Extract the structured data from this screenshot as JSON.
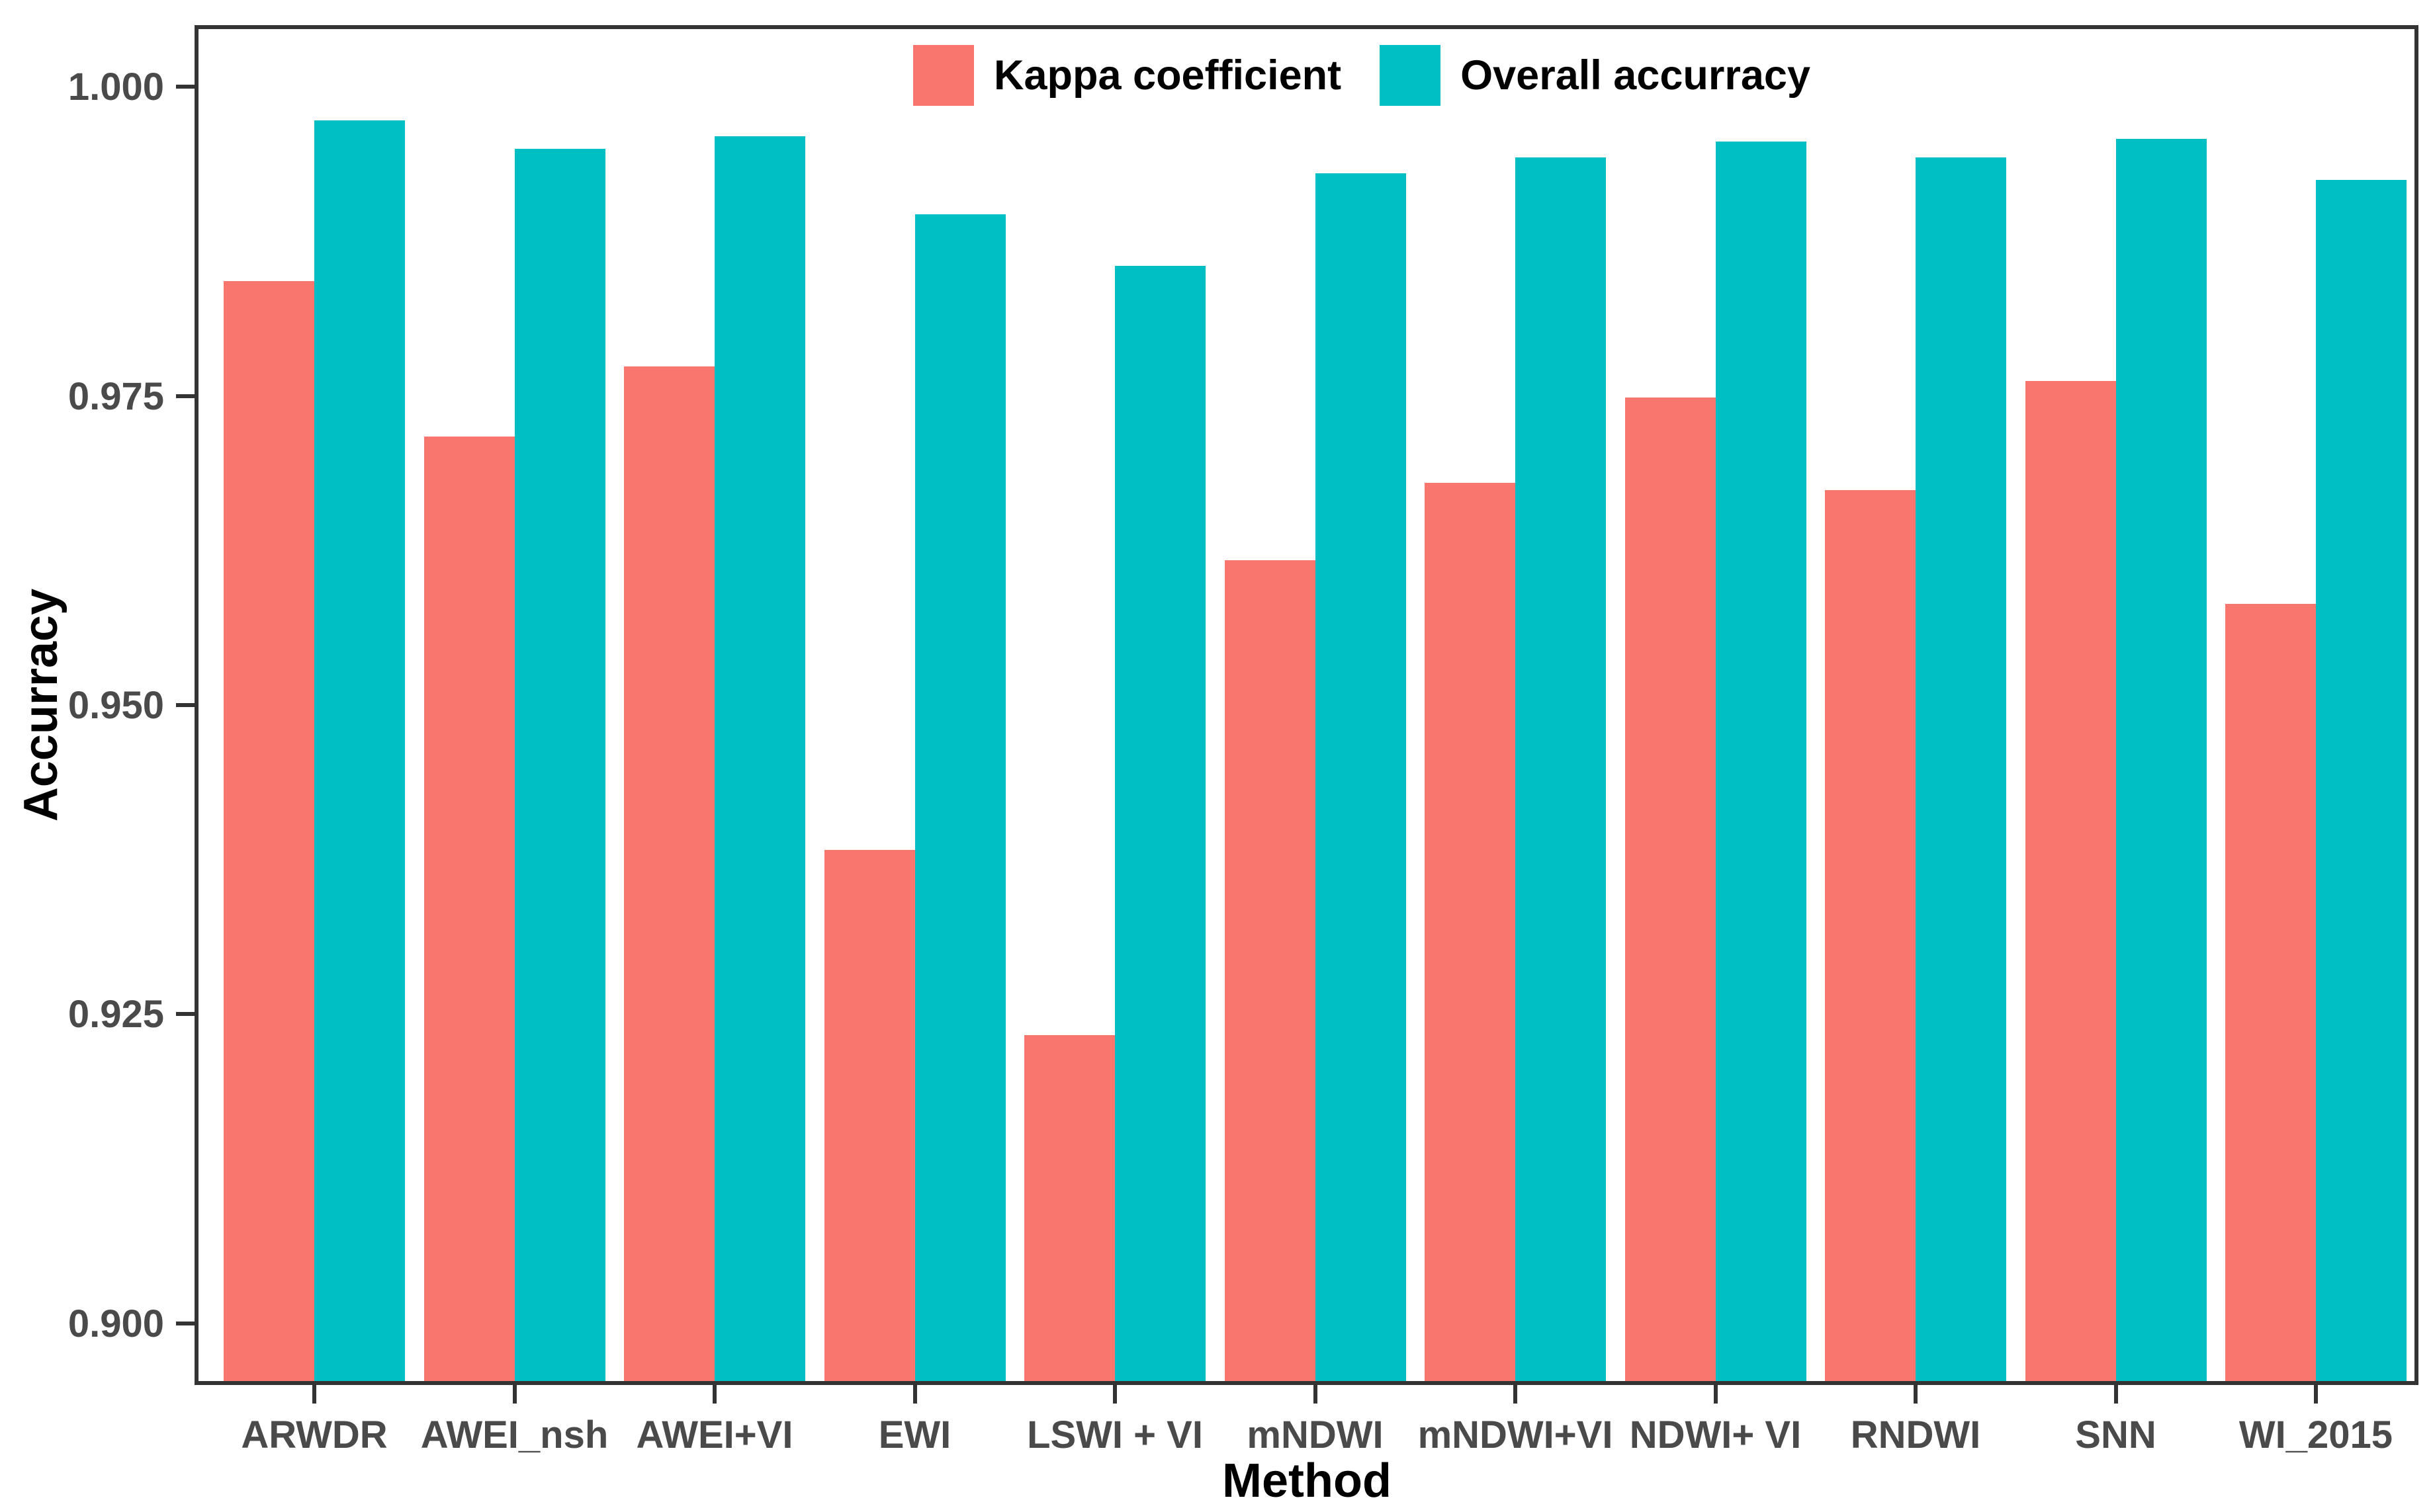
{
  "chart_data": {
    "type": "bar",
    "title": "",
    "categories": [
      "ARWDR",
      "AWEI_nsh",
      "AWEI+VI",
      "EWI",
      "LSWI + VI",
      "mNDWI",
      "mNDWI+VI",
      "NDWI+ VI",
      "RNDWI",
      "SNN",
      "WI_2015"
    ],
    "series": [
      {
        "name": "Kappa coefficient",
        "color": "#F8766D",
        "values": [
          0.9843,
          0.9717,
          0.9774,
          0.9383,
          0.9233,
          0.9617,
          0.968,
          0.9749,
          0.9674,
          0.9762,
          0.9582
        ]
      },
      {
        "name": "Overall accurracy",
        "color": "#00BFC4",
        "values": [
          0.9973,
          0.995,
          0.996,
          0.9897,
          0.9855,
          0.993,
          0.9943,
          0.9956,
          0.9943,
          0.9958,
          0.9925
        ]
      }
    ],
    "xlabel": "Method",
    "ylabel": "Accurracy",
    "ylim": [
      0.895,
      1.005
    ],
    "yticks": [
      1.0,
      0.975,
      0.95,
      0.925,
      0.9
    ],
    "ytick_labels": [
      "1.000",
      "0.975",
      "0.950",
      "0.925",
      "0.900"
    ],
    "grid": false,
    "legend_position": "top",
    "bar_orientation": "vertical"
  },
  "legend": {
    "items": [
      {
        "label": "Kappa coefficient",
        "color": "#F8766D"
      },
      {
        "label": "Overall accurracy",
        "color": "#00BFC4"
      }
    ]
  },
  "axis_colors": {
    "panel_border": "#333333",
    "tick_label": "#4a4a4a",
    "title": "#000000"
  }
}
